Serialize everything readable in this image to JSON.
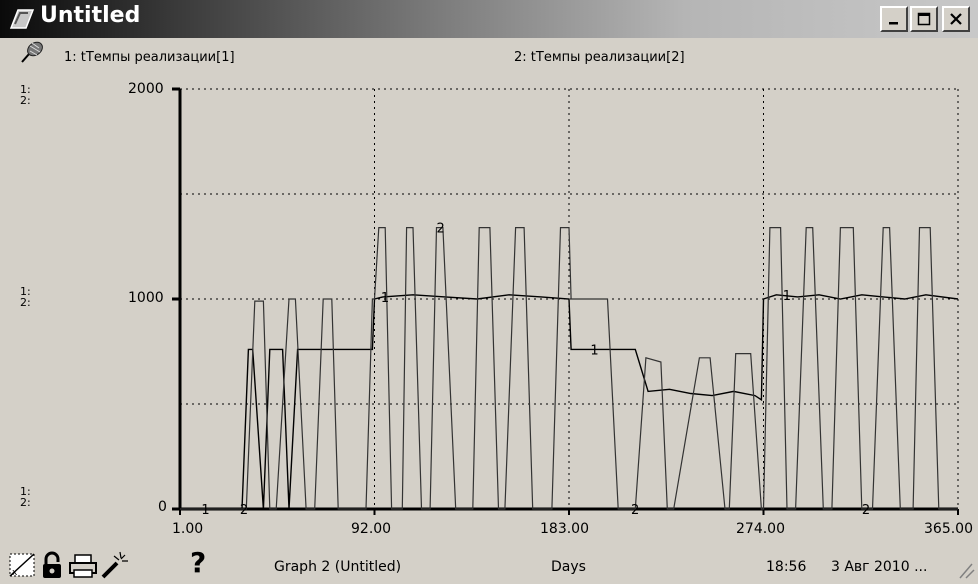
{
  "window": {
    "title": "Untitled",
    "controls": [
      "minimize-icon",
      "maximize-icon",
      "close-icon"
    ]
  },
  "legend": {
    "series1": "1: tТемпы реализации[1]",
    "series2": "2: tТемпы реализации[2]"
  },
  "axis_marks": {
    "upper": "1:",
    "lower": "2:"
  },
  "status": {
    "graph_name": "Graph 2 (Untitled)",
    "x_unit": "Days",
    "time": "18:56",
    "date": "3 Авг 2010 ..."
  },
  "toolbar_icons": [
    "lock-icon",
    "print-icon",
    "magic-wand-icon",
    "help-icon"
  ],
  "help_glyph": "?",
  "chart_data": {
    "type": "line",
    "x_ticks": [
      "1.00",
      "92.00",
      "183.00",
      "274.00",
      "365.00"
    ],
    "y_ticks": [
      "0",
      "1000",
      "2000"
    ],
    "xlim": [
      1,
      365
    ],
    "ylim": [
      0,
      2000
    ],
    "grid": true,
    "series": [
      {
        "name": "1: tТемпы реализации[1]",
        "label": "1",
        "x": [
          1,
          28,
          30,
          33,
          35,
          40,
          43,
          49,
          52,
          56,
          64,
          70,
          80,
          88,
          91,
          92,
          96,
          110,
          125,
          140,
          155,
          170,
          183,
          184,
          200,
          208,
          214,
          220,
          230,
          240,
          250,
          260,
          270,
          273,
          274,
          280,
          290,
          300,
          310,
          320,
          330,
          340,
          350,
          365
        ],
        "y": [
          0,
          0,
          0,
          760,
          760,
          0,
          760,
          760,
          0,
          760,
          760,
          760,
          760,
          760,
          760,
          1000,
          1010,
          1020,
          1010,
          1000,
          1020,
          1010,
          1000,
          760,
          760,
          760,
          760,
          560,
          570,
          550,
          540,
          560,
          540,
          520,
          1000,
          1020,
          1010,
          1020,
          1000,
          1020,
          1010,
          1000,
          1020,
          1000
        ]
      },
      {
        "name": "2: tТемпы реализации[2]",
        "label": "2",
        "x": [
          1,
          28,
          32,
          36,
          40,
          43,
          46,
          52,
          55,
          60,
          64,
          68,
          72,
          75,
          88,
          91,
          92,
          94,
          97,
          100,
          105,
          107,
          110,
          114,
          118,
          121,
          124,
          130,
          138,
          141,
          146,
          150,
          153,
          158,
          162,
          166,
          175,
          179,
          183,
          184,
          198,
          201,
          206,
          214,
          219,
          226,
          229,
          232,
          244,
          249,
          256,
          258,
          261,
          268,
          273,
          274,
          277,
          282,
          285,
          289,
          294,
          297,
          302,
          306,
          310,
          316,
          320,
          325,
          330,
          333,
          338,
          344,
          347,
          352,
          356,
          362,
          365
        ],
        "y": [
          0,
          0,
          0,
          990,
          990,
          0,
          0,
          1000,
          1000,
          0,
          0,
          1000,
          1000,
          0,
          0,
          1000,
          1000,
          1340,
          1340,
          0,
          0,
          1340,
          1340,
          0,
          0,
          1340,
          1340,
          0,
          0,
          1340,
          1340,
          0,
          0,
          1340,
          1340,
          0,
          0,
          1340,
          1340,
          1000,
          1000,
          1000,
          0,
          0,
          720,
          700,
          0,
          0,
          720,
          720,
          0,
          0,
          740,
          740,
          0,
          0,
          1340,
          1340,
          0,
          0,
          1340,
          1340,
          0,
          0,
          1340,
          1340,
          0,
          0,
          1340,
          1340,
          0,
          0,
          1340,
          1340,
          0,
          0,
          0
        ]
      }
    ],
    "series_label_positions": [
      {
        "series": "1",
        "x": [
          11,
          95,
          193,
          283
        ]
      },
      {
        "series": "2",
        "x": [
          29,
          121,
          212,
          320
        ]
      }
    ]
  }
}
